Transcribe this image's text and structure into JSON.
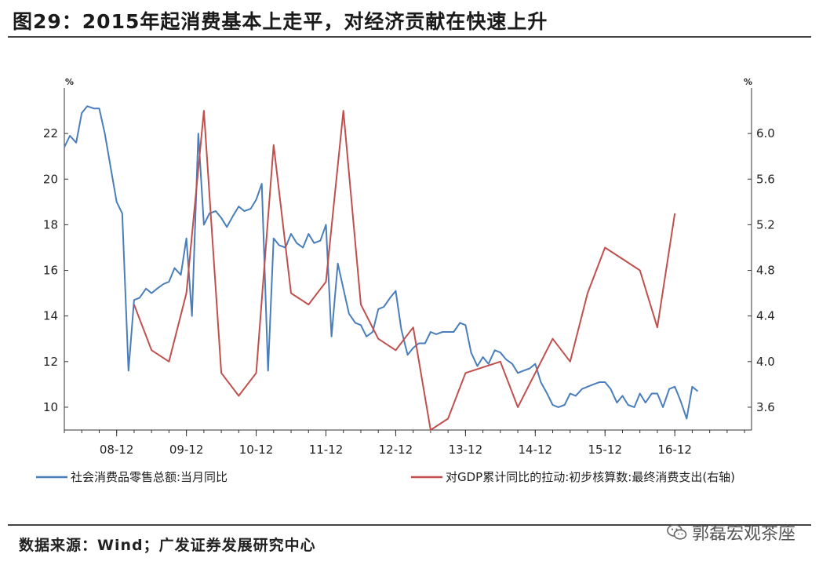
{
  "title": "图29：2015年起消费基本上走平，对经济贡献在快速上升",
  "source": "数据来源：Wind；广发证券发展研究中心",
  "watermark": "郭磊宏观茶座",
  "chart_data": {
    "type": "line",
    "title": "图29：2015年起消费基本上走平，对经济贡献在快速上升",
    "x_range": [
      2007.25,
      2017.1
    ],
    "x_ticks": [
      {
        "label": "08-12",
        "value": 2008.0
      },
      {
        "label": "09-12",
        "value": 2009.0
      },
      {
        "label": "10-12",
        "value": 2010.0
      },
      {
        "label": "11-12",
        "value": 2011.0
      },
      {
        "label": "12-12",
        "value": 2012.0
      },
      {
        "label": "13-12",
        "value": 2013.0
      },
      {
        "label": "14-12",
        "value": 2014.0
      },
      {
        "label": "15-12",
        "value": 2015.0
      },
      {
        "label": "16-12",
        "value": 2016.0
      }
    ],
    "y_left": {
      "unit": "%",
      "range": [
        9,
        24
      ],
      "ticks": [
        10,
        12,
        14,
        16,
        18,
        20,
        22
      ]
    },
    "y_right": {
      "unit": "%",
      "range": [
        3.4,
        6.4
      ],
      "ticks": [
        "3.6",
        "4.0",
        "4.4",
        "4.8",
        "5.2",
        "5.6",
        "6.0"
      ]
    },
    "legend_position": "bottom",
    "series": [
      {
        "name": "社会消费品零售总额:当月同比",
        "axis": "left",
        "color": "#4a7ebb",
        "points": [
          [
            2007.25,
            21.4
          ],
          [
            2007.33,
            21.9
          ],
          [
            2007.42,
            21.6
          ],
          [
            2007.5,
            22.9
          ],
          [
            2007.58,
            23.2
          ],
          [
            2007.67,
            23.1
          ],
          [
            2007.75,
            23.1
          ],
          [
            2007.83,
            22.0
          ],
          [
            2007.92,
            20.4
          ],
          [
            2008.0,
            19.0
          ],
          [
            2008.08,
            18.5
          ],
          [
            2008.17,
            11.6
          ],
          [
            2008.25,
            14.7
          ],
          [
            2008.33,
            14.8
          ],
          [
            2008.42,
            15.2
          ],
          [
            2008.5,
            15.0
          ],
          [
            2008.58,
            15.2
          ],
          [
            2008.67,
            15.4
          ],
          [
            2008.75,
            15.5
          ],
          [
            2008.83,
            16.1
          ],
          [
            2008.92,
            15.8
          ],
          [
            2009.0,
            17.4
          ],
          [
            2009.08,
            14.0
          ],
          [
            2009.17,
            22.0
          ],
          [
            2009.25,
            18.0
          ],
          [
            2009.33,
            18.5
          ],
          [
            2009.42,
            18.6
          ],
          [
            2009.5,
            18.3
          ],
          [
            2009.58,
            17.9
          ],
          [
            2009.67,
            18.4
          ],
          [
            2009.75,
            18.8
          ],
          [
            2009.83,
            18.6
          ],
          [
            2009.92,
            18.7
          ],
          [
            2010.0,
            19.1
          ],
          [
            2010.08,
            19.8
          ],
          [
            2010.17,
            11.6
          ],
          [
            2010.25,
            17.4
          ],
          [
            2010.33,
            17.1
          ],
          [
            2010.42,
            17.0
          ],
          [
            2010.5,
            17.6
          ],
          [
            2010.58,
            17.2
          ],
          [
            2010.67,
            17.0
          ],
          [
            2010.75,
            17.6
          ],
          [
            2010.83,
            17.2
          ],
          [
            2010.92,
            17.3
          ],
          [
            2011.0,
            18.0
          ],
          [
            2011.08,
            13.1
          ],
          [
            2011.17,
            16.3
          ],
          [
            2011.25,
            15.2
          ],
          [
            2011.33,
            14.1
          ],
          [
            2011.42,
            13.7
          ],
          [
            2011.5,
            13.6
          ],
          [
            2011.58,
            13.1
          ],
          [
            2011.67,
            13.3
          ],
          [
            2011.75,
            14.3
          ],
          [
            2011.83,
            14.4
          ],
          [
            2011.92,
            14.8
          ],
          [
            2012.0,
            15.1
          ],
          [
            2012.08,
            13.4
          ],
          [
            2012.17,
            12.3
          ],
          [
            2012.25,
            12.6
          ],
          [
            2012.33,
            12.8
          ],
          [
            2012.42,
            12.8
          ],
          [
            2012.5,
            13.3
          ],
          [
            2012.58,
            13.2
          ],
          [
            2012.67,
            13.3
          ],
          [
            2012.75,
            13.3
          ],
          [
            2012.83,
            13.3
          ],
          [
            2012.92,
            13.7
          ],
          [
            2013.0,
            13.6
          ],
          [
            2013.08,
            12.4
          ],
          [
            2013.17,
            11.8
          ],
          [
            2013.25,
            12.2
          ],
          [
            2013.33,
            11.9
          ],
          [
            2013.42,
            12.5
          ],
          [
            2013.5,
            12.4
          ],
          [
            2013.58,
            12.1
          ],
          [
            2013.67,
            11.9
          ],
          [
            2013.75,
            11.5
          ],
          [
            2013.83,
            11.6
          ],
          [
            2013.92,
            11.7
          ],
          [
            2014.0,
            11.9
          ],
          [
            2014.08,
            11.1
          ],
          [
            2014.17,
            10.6
          ],
          [
            2014.25,
            10.1
          ],
          [
            2014.33,
            10.0
          ],
          [
            2014.42,
            10.1
          ],
          [
            2014.5,
            10.6
          ],
          [
            2014.58,
            10.5
          ],
          [
            2014.67,
            10.8
          ],
          [
            2014.75,
            10.9
          ],
          [
            2014.83,
            11.0
          ],
          [
            2014.92,
            11.1
          ],
          [
            2015.0,
            11.1
          ],
          [
            2015.08,
            10.8
          ],
          [
            2015.17,
            10.2
          ],
          [
            2015.25,
            10.5
          ],
          [
            2015.33,
            10.1
          ],
          [
            2015.42,
            10.0
          ],
          [
            2015.5,
            10.6
          ],
          [
            2015.58,
            10.2
          ],
          [
            2015.67,
            10.6
          ],
          [
            2015.75,
            10.6
          ],
          [
            2015.83,
            10.0
          ],
          [
            2015.92,
            10.8
          ],
          [
            2016.0,
            10.9
          ],
          [
            2016.08,
            10.3
          ],
          [
            2016.17,
            9.5
          ],
          [
            2016.25,
            10.9
          ],
          [
            2016.33,
            10.7
          ]
        ]
      },
      {
        "name": "对GDP累计同比的拉动:初步核算数:最终消费支出(右轴)",
        "axis": "right",
        "color": "#c0504d",
        "points": [
          [
            2008.25,
            4.5
          ],
          [
            2008.5,
            4.1
          ],
          [
            2008.75,
            4.0
          ],
          [
            2009.0,
            4.6
          ],
          [
            2009.25,
            6.2
          ],
          [
            2009.5,
            3.9
          ],
          [
            2009.75,
            3.7
          ],
          [
            2010.0,
            3.9
          ],
          [
            2010.25,
            5.9
          ],
          [
            2010.5,
            4.6
          ],
          [
            2010.75,
            4.5
          ],
          [
            2011.0,
            4.7
          ],
          [
            2011.25,
            6.2
          ],
          [
            2011.5,
            4.5
          ],
          [
            2011.75,
            4.2
          ],
          [
            2012.0,
            4.1
          ],
          [
            2012.25,
            4.3
          ],
          [
            2012.5,
            3.4
          ],
          [
            2012.75,
            3.5
          ],
          [
            2013.0,
            3.9
          ],
          [
            2013.25,
            3.95
          ],
          [
            2013.5,
            4.0
          ],
          [
            2013.75,
            3.6
          ],
          [
            2014.0,
            3.9
          ],
          [
            2014.25,
            4.2
          ],
          [
            2014.5,
            4.0
          ],
          [
            2014.75,
            4.6
          ],
          [
            2015.0,
            5.0
          ],
          [
            2015.25,
            4.9
          ],
          [
            2015.5,
            4.8
          ],
          [
            2015.75,
            4.3
          ],
          [
            2016.0,
            5.3
          ]
        ]
      }
    ]
  }
}
